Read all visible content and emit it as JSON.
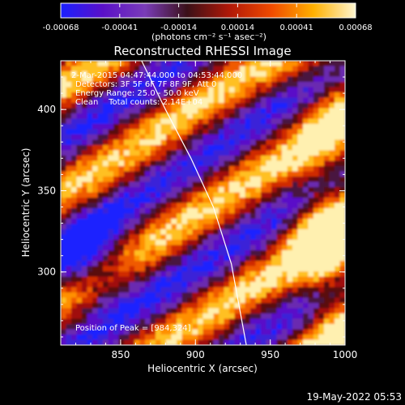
{
  "colorbar": {
    "ticks": [
      "-0.00068",
      "-0.00041",
      "-0.00014",
      "0.00014",
      "0.00041",
      "0.00068"
    ],
    "unit_label": "(photons cm⁻² s⁻¹ asec⁻²)",
    "stops": [
      "#1a20ff",
      "#5a10c8",
      "#7a3cb8",
      "#3a1018",
      "#b01808",
      "#f04a00",
      "#ffb000",
      "#fff6d0"
    ]
  },
  "plot": {
    "title": "Reconstructed RHESSI Image",
    "xlabel": "Heliocentric X (arcsec)",
    "ylabel": "Heliocentric Y (arcsec)",
    "x_ticks": [
      "850",
      "900",
      "950",
      "1000"
    ],
    "y_ticks": [
      "300",
      "350",
      "400"
    ],
    "xlim": [
      810,
      1000
    ],
    "ylim": [
      255,
      430
    ]
  },
  "info": {
    "line1": "2-Mar-2015 04:47:44.000 to 04:53:44.000",
    "line2": "Detectors: 3F 5F 6F 7F 8F 9F, Att 0",
    "line3": "Energy Range: 25.0 - 50.0 keV",
    "line4": "Clean    Total counts: 2.14E+04",
    "peak": "Position of Peak = [984,324]"
  },
  "footer": {
    "timestamp": "19-May-2022 05:53"
  },
  "limb_curve": [
    [
      864,
      430
    ],
    [
      880,
      400
    ],
    [
      897,
      370
    ],
    [
      912,
      340
    ],
    [
      924,
      305
    ],
    [
      934,
      255
    ]
  ],
  "colors": {
    "background": "#000000",
    "text": "#ffffff",
    "limb": "#ffffff"
  }
}
